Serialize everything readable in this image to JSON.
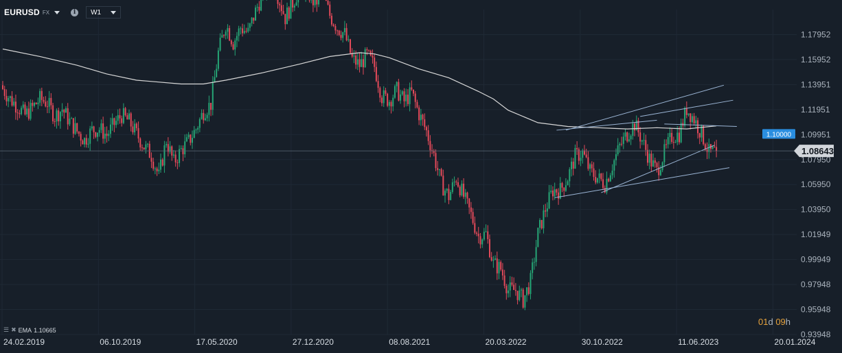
{
  "header": {
    "symbol": "EURUSD",
    "market": "FX",
    "timeframe": "W1"
  },
  "indicator": {
    "label": "EMA",
    "value": "1.10665"
  },
  "countdown": {
    "days": "01",
    "days_unit": "d",
    "hours": "09",
    "hours_unit": "h"
  },
  "colors": {
    "background": "#171f29",
    "up": "#26a676",
    "down": "#e44a5a",
    "ema": "#d8d8d8",
    "trendline": "#9cb6d6",
    "level_line": "#2a8ee0",
    "current_price_tag": "#d2d6db",
    "countdown": "#e6a23c"
  },
  "chart_data": {
    "type": "candlestick",
    "x_tick_labels": [
      "24.02.2019",
      "06.10.2019",
      "17.05.2020",
      "27.12.2020",
      "08.08.2021",
      "20.03.2022",
      "30.10.2022",
      "11.06.2023",
      "20.01.2024"
    ],
    "y_ticks": [
      1.17952,
      1.15952,
      1.13951,
      1.11951,
      1.09951,
      1.0795,
      1.0595,
      1.0395,
      1.01949,
      0.99949,
      0.97948,
      0.95948,
      0.93948
    ],
    "y_tick_labels": [
      "1.17952",
      "1.15952",
      "1.13951",
      "1.11951",
      "1.09951",
      "1.07950",
      "1.05950",
      "1.03950",
      "1.01949",
      "0.99949",
      "0.97948",
      "0.95948",
      "0.93948"
    ],
    "ylim": [
      0.93948,
      1.19952
    ],
    "current_price": 1.08643,
    "current_price_label": "1.08643",
    "horizontal_level": 1.1,
    "horizontal_level_label": "1.10000",
    "ema_label": "EMA",
    "series": [
      {
        "name": "EURUSD",
        "type": "candle",
        "close_path": [
          [
            0,
            1.136
          ],
          [
            4,
            1.128
          ],
          [
            8,
            1.122
          ],
          [
            12,
            1.115
          ],
          [
            16,
            1.121
          ],
          [
            20,
            1.128
          ],
          [
            24,
            1.125
          ],
          [
            28,
            1.114
          ],
          [
            32,
            1.12
          ],
          [
            36,
            1.11
          ],
          [
            40,
            1.102
          ],
          [
            44,
            1.095
          ],
          [
            48,
            1.103
          ],
          [
            52,
            1.104
          ],
          [
            56,
            1.099
          ],
          [
            60,
            1.108
          ],
          [
            64,
            1.115
          ],
          [
            68,
            1.11
          ],
          [
            72,
            1.1
          ],
          [
            76,
            1.09
          ],
          [
            80,
            1.083
          ],
          [
            84,
            1.066
          ],
          [
            88,
            1.095
          ],
          [
            92,
            1.077
          ],
          [
            96,
            1.087
          ],
          [
            100,
            1.094
          ],
          [
            104,
            1.104
          ],
          [
            108,
            1.118
          ],
          [
            112,
            1.124
          ],
          [
            116,
            1.165
          ],
          [
            120,
            1.188
          ],
          [
            124,
            1.173
          ],
          [
            128,
            1.185
          ],
          [
            132,
            1.181
          ],
          [
            136,
            1.198
          ],
          [
            140,
            1.213
          ],
          [
            144,
            1.224
          ],
          [
            148,
            1.211
          ],
          [
            152,
            1.193
          ],
          [
            156,
            1.205
          ],
          [
            160,
            1.217
          ],
          [
            164,
            1.214
          ],
          [
            168,
            1.204
          ],
          [
            172,
            1.213
          ],
          [
            176,
            1.195
          ],
          [
            180,
            1.185
          ],
          [
            184,
            1.18
          ],
          [
            188,
            1.16
          ],
          [
            192,
            1.155
          ],
          [
            196,
            1.163
          ],
          [
            200,
            1.154
          ],
          [
            204,
            1.13
          ],
          [
            208,
            1.127
          ],
          [
            212,
            1.135
          ],
          [
            216,
            1.126
          ],
          [
            220,
            1.133
          ],
          [
            224,
            1.116
          ],
          [
            228,
            1.102
          ],
          [
            232,
            1.083
          ],
          [
            236,
            1.06
          ],
          [
            240,
            1.05
          ],
          [
            244,
            1.065
          ],
          [
            248,
            1.05
          ],
          [
            252,
            1.035
          ],
          [
            256,
            1.018
          ],
          [
            260,
            1.02
          ],
          [
            264,
            0.996
          ],
          [
            268,
            0.992
          ],
          [
            272,
            0.975
          ],
          [
            276,
            0.975
          ],
          [
            280,
            0.967
          ],
          [
            284,
            0.982
          ],
          [
            288,
            1.02
          ],
          [
            292,
            1.04
          ],
          [
            296,
            1.055
          ],
          [
            300,
            1.055
          ],
          [
            304,
            1.065
          ],
          [
            308,
            1.082
          ],
          [
            312,
            1.085
          ],
          [
            316,
            1.07
          ],
          [
            320,
            1.065
          ],
          [
            324,
            1.06
          ],
          [
            328,
            1.075
          ],
          [
            332,
            1.09
          ],
          [
            336,
            1.1
          ],
          [
            340,
            1.108
          ],
          [
            344,
            1.095
          ],
          [
            348,
            1.08
          ],
          [
            352,
            1.07
          ],
          [
            356,
            1.085
          ],
          [
            360,
            1.098
          ],
          [
            364,
            1.1
          ],
          [
            368,
            1.12
          ],
          [
            372,
            1.112
          ],
          [
            376,
            1.1
          ],
          [
            380,
            1.085
          ],
          [
            384,
            1.086
          ]
        ]
      },
      {
        "name": "EMA",
        "type": "line",
        "values": [
          [
            0,
            1.168
          ],
          [
            20,
            1.162
          ],
          [
            40,
            1.155
          ],
          [
            56,
            1.148
          ],
          [
            72,
            1.143
          ],
          [
            80,
            1.142
          ],
          [
            96,
            1.14
          ],
          [
            108,
            1.14
          ],
          [
            120,
            1.143
          ],
          [
            140,
            1.149
          ],
          [
            160,
            1.156
          ],
          [
            176,
            1.162
          ],
          [
            192,
            1.165
          ],
          [
            200,
            1.164
          ],
          [
            208,
            1.161
          ],
          [
            224,
            1.152
          ],
          [
            240,
            1.145
          ],
          [
            256,
            1.134
          ],
          [
            264,
            1.128
          ],
          [
            272,
            1.119
          ],
          [
            288,
            1.109
          ],
          [
            304,
            1.106
          ],
          [
            320,
            1.105
          ],
          [
            336,
            1.104
          ],
          [
            352,
            1.105
          ],
          [
            368,
            1.104
          ],
          [
            384,
            1.1065
          ]
        ]
      }
    ],
    "trendlines": [
      [
        [
          298,
          1.103
        ],
        [
          352,
          1.111
        ]
      ],
      [
        [
          303,
          1.103
        ],
        [
          388,
          1.139
        ]
      ],
      [
        [
          343,
          1.114
        ],
        [
          393,
          1.127
        ]
      ],
      [
        [
          297,
          1.049
        ],
        [
          391,
          1.073
        ]
      ],
      [
        [
          322,
          1.053
        ],
        [
          383,
          1.091
        ]
      ],
      [
        [
          356,
          1.108
        ],
        [
          395,
          1.106
        ]
      ]
    ]
  }
}
